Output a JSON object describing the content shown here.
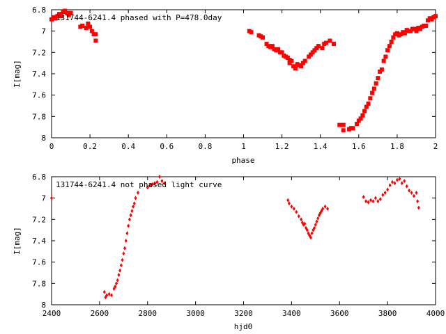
{
  "chart_data": [
    {
      "type": "scatter",
      "title": "131744-6241.4 phased with P=478.0day",
      "xlabel": "phase",
      "ylabel": "I[mag]",
      "xlim": [
        0,
        2
      ],
      "ylim": [
        6.8,
        8
      ],
      "y_inverted": true,
      "grid": false,
      "x_ticks": [
        "0",
        "0.2",
        "0.4",
        "0.6",
        "0.8",
        "1",
        "1.2",
        "1.4",
        "1.6",
        "1.8",
        "2"
      ],
      "y_ticks": [
        "6.8",
        "7",
        "7.2",
        "7.4",
        "7.6",
        "7.8",
        "8"
      ],
      "marker": "square",
      "color": "#ff0000",
      "series": [
        {
          "points": [
            [
              0.0,
              6.89
            ],
            [
              0.01,
              6.87
            ],
            [
              0.02,
              6.88
            ],
            [
              0.03,
              6.86
            ],
            [
              0.04,
              6.84
            ],
            [
              0.05,
              6.86
            ],
            [
              0.06,
              6.82
            ],
            [
              0.07,
              6.81
            ],
            [
              0.08,
              6.83
            ],
            [
              0.09,
              6.85
            ],
            [
              0.1,
              6.83
            ],
            [
              0.15,
              6.96
            ],
            [
              0.16,
              6.95
            ],
            [
              0.18,
              6.97
            ],
            [
              0.19,
              6.93
            ],
            [
              0.2,
              6.96
            ],
            [
              0.21,
              7.0
            ],
            [
              0.22,
              7.03
            ],
            [
              0.23,
              7.03
            ],
            [
              0.23,
              7.09
            ],
            [
              1.03,
              7.0
            ],
            [
              1.04,
              7.01
            ],
            [
              1.08,
              7.04
            ],
            [
              1.09,
              7.05
            ],
            [
              1.1,
              7.06
            ],
            [
              1.12,
              7.12
            ],
            [
              1.13,
              7.14
            ],
            [
              1.14,
              7.15
            ],
            [
              1.15,
              7.14
            ],
            [
              1.16,
              7.17
            ],
            [
              1.17,
              7.18
            ],
            [
              1.18,
              7.17
            ],
            [
              1.19,
              7.2
            ],
            [
              1.2,
              7.2
            ],
            [
              1.21,
              7.23
            ],
            [
              1.22,
              7.24
            ],
            [
              1.23,
              7.25
            ],
            [
              1.24,
              7.27
            ],
            [
              1.24,
              7.3
            ],
            [
              1.25,
              7.28
            ],
            [
              1.26,
              7.33
            ],
            [
              1.27,
              7.35
            ],
            [
              1.28,
              7.31
            ],
            [
              1.29,
              7.32
            ],
            [
              1.3,
              7.33
            ],
            [
              1.31,
              7.3
            ],
            [
              1.32,
              7.28
            ],
            [
              1.34,
              7.24
            ],
            [
              1.35,
              7.22
            ],
            [
              1.36,
              7.2
            ],
            [
              1.37,
              7.18
            ],
            [
              1.38,
              7.16
            ],
            [
              1.39,
              7.14
            ],
            [
              1.41,
              7.16
            ],
            [
              1.42,
              7.12
            ],
            [
              1.43,
              7.11
            ],
            [
              1.45,
              7.09
            ],
            [
              1.47,
              7.12
            ],
            [
              1.5,
              7.88
            ],
            [
              1.52,
              7.88
            ],
            [
              1.52,
              7.93
            ],
            [
              1.55,
              7.92
            ],
            [
              1.56,
              7.91
            ],
            [
              1.57,
              7.91
            ],
            [
              1.59,
              7.87
            ],
            [
              1.6,
              7.84
            ],
            [
              1.61,
              7.82
            ],
            [
              1.62,
              7.79
            ],
            [
              1.63,
              7.75
            ],
            [
              1.64,
              7.71
            ],
            [
              1.65,
              7.68
            ],
            [
              1.66,
              7.63
            ],
            [
              1.67,
              7.58
            ],
            [
              1.68,
              7.54
            ],
            [
              1.69,
              7.49
            ],
            [
              1.7,
              7.44
            ],
            [
              1.71,
              7.38
            ],
            [
              1.72,
              7.36
            ],
            [
              1.73,
              7.28
            ],
            [
              1.74,
              7.24
            ],
            [
              1.75,
              7.18
            ],
            [
              1.76,
              7.14
            ],
            [
              1.77,
              7.1
            ],
            [
              1.78,
              7.06
            ],
            [
              1.79,
              7.03
            ],
            [
              1.8,
              7.02
            ],
            [
              1.81,
              7.04
            ],
            [
              1.82,
              7.03
            ],
            [
              1.83,
              7.01
            ],
            [
              1.84,
              7.02
            ],
            [
              1.85,
              6.99
            ],
            [
              1.86,
              7.0
            ],
            [
              1.87,
              7.0
            ],
            [
              1.88,
              6.98
            ],
            [
              1.89,
              6.98
            ],
            [
              1.9,
              7.0
            ],
            [
              1.91,
              6.97
            ],
            [
              1.92,
              6.98
            ],
            [
              1.93,
              6.96
            ],
            [
              1.94,
              6.95
            ],
            [
              1.95,
              6.95
            ],
            [
              1.96,
              6.9
            ],
            [
              1.97,
              6.88
            ],
            [
              1.98,
              6.89
            ],
            [
              1.99,
              6.87
            ],
            [
              2.0,
              6.86
            ]
          ]
        }
      ]
    },
    {
      "type": "scatter",
      "title": "131744-6241.4 not phased light curve",
      "xlabel": "hjd0",
      "ylabel": "I[mag]",
      "xlim": [
        2400,
        4000
      ],
      "ylim": [
        6.8,
        8
      ],
      "y_inverted": true,
      "grid": false,
      "x_ticks": [
        "2400",
        "2600",
        "2800",
        "3000",
        "3200",
        "3400",
        "3600",
        "3800",
        "4000"
      ],
      "y_ticks": [
        "6.8",
        "7",
        "7.2",
        "7.4",
        "7.6",
        "7.8",
        "8"
      ],
      "marker": "diamond",
      "color": "#ff0000",
      "series": [
        {
          "points": [
            [
              2400,
              7.0
            ],
            [
              2620,
              7.88
            ],
            [
              2625,
              7.93
            ],
            [
              2630,
              7.91
            ],
            [
              2640,
              7.9
            ],
            [
              2650,
              7.91
            ],
            [
              2660,
              7.85
            ],
            [
              2665,
              7.83
            ],
            [
              2670,
              7.8
            ],
            [
              2675,
              7.77
            ],
            [
              2680,
              7.72
            ],
            [
              2685,
              7.68
            ],
            [
              2690,
              7.63
            ],
            [
              2695,
              7.58
            ],
            [
              2700,
              7.52
            ],
            [
              2705,
              7.47
            ],
            [
              2710,
              7.4
            ],
            [
              2715,
              7.33
            ],
            [
              2720,
              7.26
            ],
            [
              2725,
              7.2
            ],
            [
              2730,
              7.16
            ],
            [
              2735,
              7.12
            ],
            [
              2740,
              7.08
            ],
            [
              2745,
              7.05
            ],
            [
              2750,
              7.0
            ],
            [
              2760,
              6.95
            ],
            [
              2800,
              6.9
            ],
            [
              2810,
              6.88
            ],
            [
              2820,
              6.87
            ],
            [
              2830,
              6.86
            ],
            [
              2840,
              6.85
            ],
            [
              2850,
              6.8
            ],
            [
              2860,
              6.84
            ],
            [
              2870,
              6.86
            ],
            [
              3385,
              7.02
            ],
            [
              3390,
              7.05
            ],
            [
              3400,
              7.08
            ],
            [
              3410,
              7.1
            ],
            [
              3420,
              7.13
            ],
            [
              3430,
              7.17
            ],
            [
              3440,
              7.2
            ],
            [
              3445,
              7.23
            ],
            [
              3450,
              7.25
            ],
            [
              3455,
              7.24
            ],
            [
              3460,
              7.28
            ],
            [
              3465,
              7.3
            ],
            [
              3470,
              7.33
            ],
            [
              3475,
              7.35
            ],
            [
              3480,
              7.37
            ],
            [
              3485,
              7.33
            ],
            [
              3490,
              7.3
            ],
            [
              3495,
              7.28
            ],
            [
              3500,
              7.25
            ],
            [
              3505,
              7.22
            ],
            [
              3510,
              7.19
            ],
            [
              3515,
              7.16
            ],
            [
              3520,
              7.14
            ],
            [
              3525,
              7.12
            ],
            [
              3530,
              7.1
            ],
            [
              3540,
              7.08
            ],
            [
              3550,
              7.1
            ],
            [
              3700,
              6.99
            ],
            [
              3710,
              7.03
            ],
            [
              3720,
              7.04
            ],
            [
              3730,
              7.02
            ],
            [
              3740,
              7.03
            ],
            [
              3750,
              7.0
            ],
            [
              3760,
              7.03
            ],
            [
              3770,
              7.01
            ],
            [
              3780,
              6.97
            ],
            [
              3790,
              6.95
            ],
            [
              3800,
              6.92
            ],
            [
              3810,
              6.88
            ],
            [
              3820,
              6.85
            ],
            [
              3830,
              6.86
            ],
            [
              3840,
              6.83
            ],
            [
              3850,
              6.82
            ],
            [
              3860,
              6.86
            ],
            [
              3870,
              6.84
            ],
            [
              3880,
              6.89
            ],
            [
              3890,
              6.93
            ],
            [
              3900,
              6.95
            ],
            [
              3910,
              6.98
            ],
            [
              3920,
              6.95
            ],
            [
              3925,
              7.03
            ],
            [
              3930,
              7.09
            ]
          ]
        }
      ]
    }
  ]
}
